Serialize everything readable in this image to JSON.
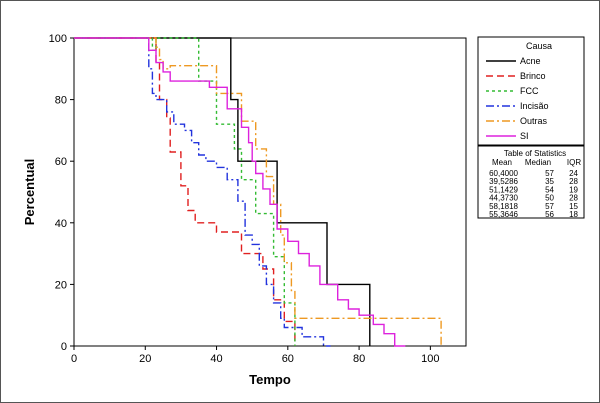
{
  "chart_data": {
    "type": "line",
    "step": true,
    "title": "",
    "xlabel": "Tempo",
    "ylabel": "Percentual",
    "xlim": [
      0,
      110
    ],
    "ylim": [
      0,
      100
    ],
    "x_ticks": [
      "0",
      "20",
      "40",
      "60",
      "80",
      "100"
    ],
    "y_ticks": [
      "0",
      "20",
      "40",
      "60",
      "80",
      "100"
    ],
    "grid": false,
    "legend": {
      "title": "Causa",
      "placement": "right-top"
    },
    "series": [
      {
        "name": "Acne",
        "color": "#000000",
        "dash": "solid",
        "points": [
          [
            0,
            100
          ],
          [
            44,
            100
          ],
          [
            44,
            80
          ],
          [
            46,
            80
          ],
          [
            46,
            60
          ],
          [
            57,
            60
          ],
          [
            57,
            40
          ],
          [
            71,
            40
          ],
          [
            71,
            20
          ],
          [
            83,
            20
          ],
          [
            83,
            0
          ]
        ]
      },
      {
        "name": "Brinco",
        "color": "#e02020",
        "dash": "dashed",
        "points": [
          [
            0,
            100
          ],
          [
            23,
            100
          ],
          [
            23,
            92
          ],
          [
            24,
            92
          ],
          [
            24,
            80
          ],
          [
            26,
            80
          ],
          [
            26,
            74
          ],
          [
            27,
            74
          ],
          [
            27,
            63
          ],
          [
            30,
            63
          ],
          [
            30,
            52
          ],
          [
            32,
            52
          ],
          [
            32,
            44
          ],
          [
            34,
            44
          ],
          [
            34,
            40
          ],
          [
            40,
            40
          ],
          [
            40,
            37
          ],
          [
            47,
            37
          ],
          [
            47,
            30
          ],
          [
            53,
            30
          ],
          [
            53,
            25
          ],
          [
            56,
            25
          ],
          [
            56,
            15
          ],
          [
            59,
            15
          ],
          [
            59,
            8
          ],
          [
            62,
            8
          ],
          [
            62,
            0
          ]
        ]
      },
      {
        "name": "FCC",
        "color": "#33bb33",
        "dash": "dotted",
        "points": [
          [
            0,
            100
          ],
          [
            22,
            100
          ],
          [
            22,
            96
          ],
          [
            23,
            96
          ],
          [
            23,
            100
          ],
          [
            35,
            100
          ],
          [
            35,
            86
          ],
          [
            40,
            86
          ],
          [
            40,
            72
          ],
          [
            45,
            72
          ],
          [
            45,
            64
          ],
          [
            47,
            64
          ],
          [
            47,
            54
          ],
          [
            51,
            54
          ],
          [
            51,
            43
          ],
          [
            56,
            43
          ],
          [
            56,
            29
          ],
          [
            59,
            29
          ],
          [
            59,
            14
          ],
          [
            62,
            14
          ],
          [
            62,
            0
          ]
        ]
      },
      {
        "name": "Incisão",
        "color": "#2233dd",
        "dash": "dashdot",
        "points": [
          [
            0,
            100
          ],
          [
            21,
            100
          ],
          [
            21,
            90
          ],
          [
            22,
            90
          ],
          [
            22,
            82
          ],
          [
            23,
            82
          ],
          [
            23,
            80
          ],
          [
            26,
            80
          ],
          [
            26,
            76
          ],
          [
            28,
            76
          ],
          [
            28,
            72
          ],
          [
            31,
            72
          ],
          [
            31,
            70
          ],
          [
            33,
            70
          ],
          [
            33,
            66
          ],
          [
            35,
            66
          ],
          [
            35,
            62
          ],
          [
            37,
            62
          ],
          [
            37,
            60
          ],
          [
            40,
            60
          ],
          [
            40,
            58
          ],
          [
            43,
            58
          ],
          [
            43,
            54
          ],
          [
            46,
            54
          ],
          [
            46,
            47
          ],
          [
            48,
            47
          ],
          [
            48,
            36
          ],
          [
            50,
            36
          ],
          [
            50,
            33
          ],
          [
            52,
            33
          ],
          [
            52,
            26
          ],
          [
            54,
            26
          ],
          [
            54,
            20
          ],
          [
            56,
            20
          ],
          [
            56,
            14
          ],
          [
            58,
            14
          ],
          [
            58,
            9
          ],
          [
            59,
            9
          ],
          [
            59,
            6
          ],
          [
            64,
            6
          ],
          [
            64,
            3
          ],
          [
            70,
            3
          ],
          [
            70,
            0
          ],
          [
            72,
            0
          ]
        ]
      },
      {
        "name": "Outras",
        "color": "#ee9922",
        "dash": "dashdot",
        "points": [
          [
            0,
            100
          ],
          [
            23,
            100
          ],
          [
            23,
            97
          ],
          [
            24,
            97
          ],
          [
            24,
            93
          ],
          [
            25,
            93
          ],
          [
            25,
            90
          ],
          [
            27,
            90
          ],
          [
            27,
            91
          ],
          [
            40,
            91
          ],
          [
            40,
            82
          ],
          [
            47,
            82
          ],
          [
            47,
            73
          ],
          [
            51,
            73
          ],
          [
            51,
            64
          ],
          [
            54,
            64
          ],
          [
            54,
            55
          ],
          [
            56,
            55
          ],
          [
            56,
            46
          ],
          [
            58,
            46
          ],
          [
            58,
            36
          ],
          [
            59,
            36
          ],
          [
            59,
            27
          ],
          [
            61,
            27
          ],
          [
            61,
            18
          ],
          [
            62,
            18
          ],
          [
            62,
            9
          ],
          [
            103,
            9
          ],
          [
            103,
            0
          ]
        ]
      },
      {
        "name": "SI",
        "color": "#dd22dd",
        "dash": "solid",
        "points": [
          [
            0,
            100
          ],
          [
            21,
            100
          ],
          [
            21,
            96
          ],
          [
            23,
            96
          ],
          [
            23,
            92
          ],
          [
            25,
            92
          ],
          [
            25,
            89
          ],
          [
            27,
            89
          ],
          [
            27,
            86
          ],
          [
            38,
            86
          ],
          [
            38,
            84
          ],
          [
            43,
            84
          ],
          [
            43,
            77
          ],
          [
            47,
            77
          ],
          [
            47,
            71
          ],
          [
            49,
            71
          ],
          [
            49,
            66
          ],
          [
            50,
            66
          ],
          [
            50,
            60
          ],
          [
            51,
            60
          ],
          [
            51,
            56
          ],
          [
            53,
            56
          ],
          [
            53,
            51
          ],
          [
            55,
            51
          ],
          [
            55,
            46
          ],
          [
            57,
            46
          ],
          [
            57,
            38
          ],
          [
            60,
            38
          ],
          [
            60,
            34
          ],
          [
            63,
            34
          ],
          [
            63,
            30
          ],
          [
            66,
            30
          ],
          [
            66,
            26
          ],
          [
            69,
            26
          ],
          [
            69,
            20
          ],
          [
            74,
            20
          ],
          [
            74,
            15
          ],
          [
            77,
            15
          ],
          [
            77,
            12
          ],
          [
            80,
            12
          ],
          [
            80,
            10
          ],
          [
            84,
            10
          ],
          [
            84,
            7
          ],
          [
            87,
            7
          ],
          [
            87,
            4
          ],
          [
            90,
            4
          ],
          [
            90,
            0
          ],
          [
            93,
            0
          ]
        ]
      }
    ],
    "stats_table": {
      "title": "Table of Statistics",
      "headers": [
        "Mean",
        "Median",
        "IQR"
      ],
      "rows": [
        [
          "60,4000",
          "57",
          "24"
        ],
        [
          "39,5286",
          "35",
          "28"
        ],
        [
          "51,1429",
          "54",
          "19"
        ],
        [
          "44,3730",
          "50",
          "28"
        ],
        [
          "58,1818",
          "57",
          "15"
        ],
        [
          "55,3646",
          "56",
          "18"
        ]
      ]
    }
  }
}
